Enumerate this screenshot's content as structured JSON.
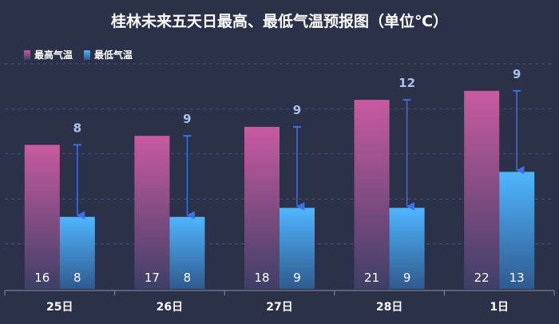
{
  "chart_data": {
    "type": "bar",
    "title": "桂林未来五天日最高、最低气温预报图（单位℃）",
    "categories": [
      "25日",
      "26日",
      "27日",
      "28日",
      "1日"
    ],
    "series": [
      {
        "name": "最高气温",
        "values": [
          16,
          17,
          18,
          21,
          22
        ]
      },
      {
        "name": "最低气温",
        "values": [
          8,
          8,
          9,
          9,
          13
        ]
      }
    ],
    "diff_labels": [
      8,
      9,
      9,
      12,
      9
    ],
    "xlabel": "",
    "ylabel": "",
    "ylim": [
      0,
      25
    ],
    "grid": true,
    "legend_position": "top-left",
    "colors": {
      "high_top": "#c95aa0",
      "high_bottom": "#3e3f66",
      "low_top": "#4fb6ff",
      "low_bottom": "#2f5a8e",
      "arrow": "#3d6fe8",
      "diff_label": "#a9c3ec",
      "grid": "#4a5270",
      "axis": "#8a90a8"
    }
  }
}
